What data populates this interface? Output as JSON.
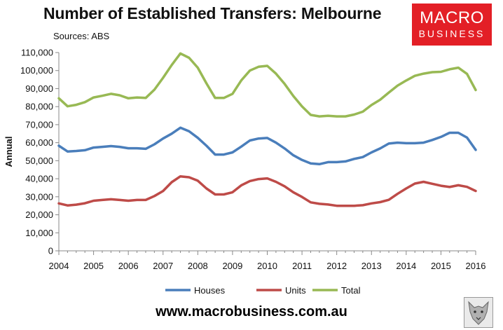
{
  "chart_data": {
    "type": "line",
    "title": "Number of Established Transfers: Melbourne",
    "subtitle": "Sources: ABS",
    "ylabel": "Annual",
    "xlabel": "",
    "ylim": [
      0,
      110000
    ],
    "yticks": [
      0,
      10000,
      20000,
      30000,
      40000,
      50000,
      60000,
      70000,
      80000,
      90000,
      100000,
      110000
    ],
    "ytick_labels": [
      "0",
      "10,000",
      "20,000",
      "30,000",
      "40,000",
      "50,000",
      "60,000",
      "70,000",
      "80,000",
      "90,000",
      "100,000",
      "110,000"
    ],
    "xlim": [
      2004,
      2016
    ],
    "xticks": [
      2004,
      2005,
      2006,
      2007,
      2008,
      2009,
      2010,
      2011,
      2012,
      2013,
      2014,
      2015,
      2016
    ],
    "xtick_labels": [
      "2004",
      "2005",
      "2006",
      "2007",
      "2008",
      "2009",
      "2010",
      "2011",
      "2012",
      "2013",
      "2014",
      "2015",
      "2016"
    ],
    "grid": false,
    "legend": "bottom",
    "x": [
      2004.0,
      2004.25,
      2004.5,
      2004.75,
      2005.0,
      2005.25,
      2005.5,
      2005.75,
      2006.0,
      2006.25,
      2006.5,
      2006.75,
      2007.0,
      2007.25,
      2007.5,
      2007.75,
      2008.0,
      2008.25,
      2008.5,
      2008.75,
      2009.0,
      2009.25,
      2009.5,
      2009.75,
      2010.0,
      2010.25,
      2010.5,
      2010.75,
      2011.0,
      2011.25,
      2011.5,
      2011.75,
      2012.0,
      2012.25,
      2012.5,
      2012.75,
      2013.0,
      2013.25,
      2013.5,
      2013.75,
      2014.0,
      2014.25,
      2014.5,
      2014.75,
      2015.0,
      2015.25,
      2015.5,
      2015.75,
      2016.0
    ],
    "series": [
      {
        "name": "Houses",
        "color": "#4a7ebb",
        "values": [
          58300,
          55100,
          55400,
          55800,
          57300,
          57700,
          58100,
          57700,
          56900,
          56900,
          56600,
          59100,
          62300,
          65000,
          68300,
          66300,
          62700,
          58300,
          53400,
          53400,
          54600,
          57800,
          61200,
          62300,
          62600,
          60000,
          56800,
          53000,
          50400,
          48500,
          48100,
          49200,
          49200,
          49600,
          51000,
          52000,
          54600,
          56800,
          59500,
          60000,
          59700,
          59700,
          60000,
          61500,
          63200,
          65500,
          65500,
          62800,
          56000
        ]
      },
      {
        "name": "Units",
        "color": "#be4b48",
        "values": [
          26300,
          25200,
          25600,
          26400,
          27800,
          28200,
          28600,
          28200,
          27800,
          28200,
          28200,
          30400,
          33200,
          38100,
          41300,
          40800,
          38900,
          34600,
          31300,
          31300,
          32500,
          36300,
          38700,
          39800,
          40200,
          38300,
          35800,
          32500,
          29900,
          26900,
          26100,
          25700,
          25000,
          25000,
          25000,
          25300,
          26300,
          27000,
          28300,
          31600,
          34600,
          37300,
          38300,
          37200,
          36100,
          35400,
          36400,
          35500,
          33200
        ]
      },
      {
        "name": "Total",
        "color": "#98b954",
        "values": [
          84600,
          80200,
          81000,
          82500,
          85100,
          86000,
          87100,
          86300,
          84600,
          85100,
          84800,
          89400,
          96000,
          103100,
          109500,
          107100,
          101600,
          92900,
          84800,
          84800,
          87100,
          94500,
          100000,
          102100,
          102600,
          98300,
          92600,
          85900,
          80100,
          75400,
          74600,
          74900,
          74600,
          74600,
          75600,
          77200,
          80900,
          83800,
          87800,
          91600,
          94500,
          97100,
          98300,
          99100,
          99300,
          100700,
          101600,
          98200,
          89200
        ]
      }
    ]
  },
  "branding": {
    "logo_line1": "MACRO",
    "logo_line2": "BUSINESS",
    "url": "www.macrobusiness.com.au",
    "logo_color": "#e31f26"
  }
}
